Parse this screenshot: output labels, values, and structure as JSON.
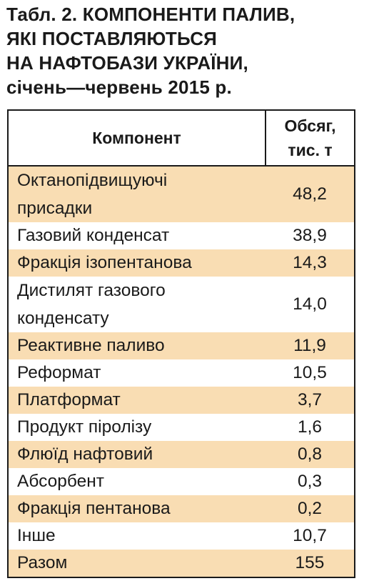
{
  "title": {
    "lines": [
      "Табл. 2. КОМПОНЕНТИ ПАЛИВ,",
      "ЯКІ ПОСТАВЛЯЮТЬСЯ",
      "НА НАФТОБАЗИ УКРАЇНИ,",
      "січень—червень 2015 р."
    ]
  },
  "table": {
    "headers": {
      "component": "Компонент",
      "volume_line1": "Обсяг,",
      "volume_line2": "тис. т"
    },
    "rows": [
      {
        "name_line1": "Октанопідвищуючі",
        "name_line2": "присадки",
        "value": "48,2"
      },
      {
        "name_line1": "Газовий конденсат",
        "name_line2": "",
        "value": "38,9"
      },
      {
        "name_line1": "Фракція ізопентанова",
        "name_line2": "",
        "value": "14,3"
      },
      {
        "name_line1": "Дистилят газового",
        "name_line2": "конденсату",
        "value": "14,0"
      },
      {
        "name_line1": "Реактивне паливо",
        "name_line2": "",
        "value": "11,9"
      },
      {
        "name_line1": "Реформат",
        "name_line2": "",
        "value": "10,5"
      },
      {
        "name_line1": "Платформат",
        "name_line2": "",
        "value": "3,7"
      },
      {
        "name_line1": "Продукт піролізу",
        "name_line2": "",
        "value": "1,6"
      },
      {
        "name_line1": "Флюїд нафтовий",
        "name_line2": "",
        "value": "0,8"
      },
      {
        "name_line1": "Абсорбент",
        "name_line2": "",
        "value": "0,3"
      },
      {
        "name_line1": "Фракція пентанова",
        "name_line2": "",
        "value": "0,2"
      },
      {
        "name_line1": "Інше",
        "name_line2": "",
        "value": "10,7"
      },
      {
        "name_line1": "Разом",
        "name_line2": "",
        "value": "155"
      }
    ]
  },
  "colors": {
    "shade": "#f9ddb3",
    "text": "#1a1a1a",
    "border": "#1a1a1a"
  }
}
